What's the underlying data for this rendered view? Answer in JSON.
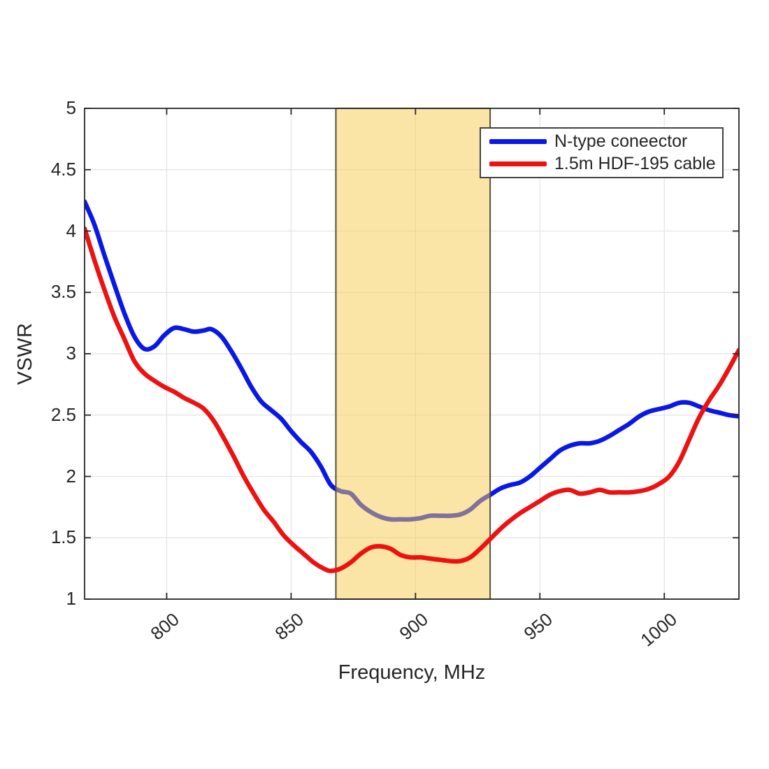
{
  "page": {
    "background": "#FFFFFF"
  },
  "chart_data": {
    "type": "line",
    "title": "",
    "xlabel": "Frequency, MHz",
    "ylabel": "VSWR",
    "xlim": [
      767,
      1030
    ],
    "ylim": [
      1,
      5
    ],
    "xticks": [
      800,
      850,
      900,
      950,
      1000
    ],
    "xtick_labels": [
      "800",
      "850",
      "900",
      "950",
      "1000"
    ],
    "yticks": [
      1,
      1.5,
      2,
      2.5,
      3,
      3.5,
      4,
      4.5,
      5
    ],
    "ytick_labels": [
      "1",
      "1.5",
      "2",
      "2.5",
      "3",
      "3.5",
      "4",
      "4.5",
      "5"
    ],
    "grid": true,
    "axis_color": "#262626",
    "grid_color": "#E3E3E3",
    "tick_direction": "in",
    "highlight_band": {
      "x_start": 868,
      "x_end": 930,
      "fill": "#F7CB4D",
      "fill_opacity": 0.5,
      "border_color": "#56503A"
    },
    "legend_position": "top-right",
    "series": [
      {
        "name": "N-type coneector",
        "color": "#0A18E6",
        "points": [
          [
            767,
            4.24
          ],
          [
            771,
            4.05
          ],
          [
            775,
            3.8
          ],
          [
            779,
            3.56
          ],
          [
            783,
            3.33
          ],
          [
            787,
            3.14
          ],
          [
            791,
            3.04
          ],
          [
            795,
            3.06
          ],
          [
            799,
            3.15
          ],
          [
            803,
            3.21
          ],
          [
            807,
            3.2
          ],
          [
            811,
            3.18
          ],
          [
            815,
            3.19
          ],
          [
            818,
            3.2
          ],
          [
            822,
            3.14
          ],
          [
            826,
            3.02
          ],
          [
            830,
            2.88
          ],
          [
            834,
            2.73
          ],
          [
            838,
            2.61
          ],
          [
            842,
            2.54
          ],
          [
            846,
            2.47
          ],
          [
            850,
            2.37
          ],
          [
            854,
            2.28
          ],
          [
            858,
            2.2
          ],
          [
            862,
            2.08
          ],
          [
            866,
            1.93
          ],
          [
            870,
            1.88
          ],
          [
            874,
            1.86
          ],
          [
            878,
            1.77
          ],
          [
            882,
            1.71
          ],
          [
            886,
            1.67
          ],
          [
            890,
            1.65
          ],
          [
            894,
            1.65
          ],
          [
            898,
            1.65
          ],
          [
            902,
            1.66
          ],
          [
            906,
            1.68
          ],
          [
            910,
            1.68
          ],
          [
            914,
            1.68
          ],
          [
            918,
            1.69
          ],
          [
            922,
            1.73
          ],
          [
            926,
            1.8
          ],
          [
            930,
            1.85
          ],
          [
            934,
            1.9
          ],
          [
            938,
            1.93
          ],
          [
            942,
            1.95
          ],
          [
            946,
            2.0
          ],
          [
            950,
            2.07
          ],
          [
            954,
            2.14
          ],
          [
            958,
            2.21
          ],
          [
            962,
            2.25
          ],
          [
            966,
            2.27
          ],
          [
            970,
            2.27
          ],
          [
            974,
            2.29
          ],
          [
            978,
            2.33
          ],
          [
            982,
            2.38
          ],
          [
            986,
            2.43
          ],
          [
            990,
            2.49
          ],
          [
            994,
            2.53
          ],
          [
            998,
            2.55
          ],
          [
            1002,
            2.57
          ],
          [
            1006,
            2.6
          ],
          [
            1010,
            2.6
          ],
          [
            1014,
            2.57
          ],
          [
            1018,
            2.54
          ],
          [
            1022,
            2.52
          ],
          [
            1026,
            2.5
          ],
          [
            1030,
            2.49
          ]
        ]
      },
      {
        "name": "1.5m HDF-195 cable",
        "color": "#EE1111",
        "points": [
          [
            767,
            4.02
          ],
          [
            771,
            3.76
          ],
          [
            775,
            3.52
          ],
          [
            779,
            3.3
          ],
          [
            783,
            3.12
          ],
          [
            787,
            2.94
          ],
          [
            791,
            2.84
          ],
          [
            795,
            2.78
          ],
          [
            799,
            2.73
          ],
          [
            803,
            2.69
          ],
          [
            807,
            2.64
          ],
          [
            811,
            2.6
          ],
          [
            815,
            2.55
          ],
          [
            819,
            2.45
          ],
          [
            823,
            2.31
          ],
          [
            827,
            2.16
          ],
          [
            831,
            2.0
          ],
          [
            835,
            1.86
          ],
          [
            839,
            1.73
          ],
          [
            843,
            1.63
          ],
          [
            847,
            1.52
          ],
          [
            851,
            1.44
          ],
          [
            855,
            1.37
          ],
          [
            859,
            1.3
          ],
          [
            863,
            1.25
          ],
          [
            866,
            1.23
          ],
          [
            870,
            1.25
          ],
          [
            874,
            1.3
          ],
          [
            878,
            1.37
          ],
          [
            882,
            1.42
          ],
          [
            886,
            1.43
          ],
          [
            890,
            1.41
          ],
          [
            894,
            1.36
          ],
          [
            898,
            1.34
          ],
          [
            902,
            1.34
          ],
          [
            906,
            1.33
          ],
          [
            910,
            1.32
          ],
          [
            914,
            1.31
          ],
          [
            918,
            1.31
          ],
          [
            922,
            1.34
          ],
          [
            926,
            1.41
          ],
          [
            930,
            1.49
          ],
          [
            934,
            1.57
          ],
          [
            938,
            1.64
          ],
          [
            942,
            1.7
          ],
          [
            946,
            1.75
          ],
          [
            950,
            1.8
          ],
          [
            954,
            1.85
          ],
          [
            958,
            1.88
          ],
          [
            962,
            1.89
          ],
          [
            966,
            1.86
          ],
          [
            970,
            1.87
          ],
          [
            974,
            1.89
          ],
          [
            978,
            1.87
          ],
          [
            982,
            1.87
          ],
          [
            986,
            1.87
          ],
          [
            990,
            1.88
          ],
          [
            994,
            1.9
          ],
          [
            998,
            1.94
          ],
          [
            1002,
            2.0
          ],
          [
            1006,
            2.12
          ],
          [
            1010,
            2.3
          ],
          [
            1014,
            2.48
          ],
          [
            1018,
            2.62
          ],
          [
            1022,
            2.74
          ],
          [
            1026,
            2.88
          ],
          [
            1030,
            3.03
          ]
        ]
      }
    ]
  }
}
